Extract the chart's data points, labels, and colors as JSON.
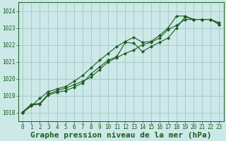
{
  "title": "Graphe pression niveau de la mer (hPa)",
  "bg_color": "#cce8e8",
  "grid_color": "#aacccc",
  "line_color": "#1a5c1a",
  "xlim": [
    -0.5,
    23.5
  ],
  "ylim": [
    1017.5,
    1024.5
  ],
  "yticks": [
    1018,
    1019,
    1020,
    1021,
    1022,
    1023,
    1024
  ],
  "xticks": [
    0,
    1,
    2,
    3,
    4,
    5,
    6,
    7,
    8,
    9,
    10,
    11,
    12,
    13,
    14,
    15,
    16,
    17,
    18,
    19,
    20,
    21,
    22,
    23
  ],
  "series": [
    {
      "x": [
        0,
        1,
        2,
        3,
        4,
        5,
        6,
        7,
        8,
        9,
        10,
        11,
        12,
        13,
        14,
        15,
        16,
        17,
        18,
        19,
        20,
        21,
        22,
        23
      ],
      "y": [
        1018.05,
        1018.5,
        1018.55,
        1019.1,
        1019.3,
        1019.45,
        1019.65,
        1019.85,
        1020.1,
        1020.55,
        1021.0,
        1021.25,
        1021.5,
        1021.7,
        1022.0,
        1022.15,
        1022.4,
        1022.9,
        1023.15,
        1023.5,
        1023.5,
        1023.5,
        1023.5,
        1023.2
      ],
      "marker": true
    },
    {
      "x": [
        0,
        1,
        2,
        3,
        4,
        5,
        6,
        7,
        8,
        9,
        10,
        11,
        12,
        13,
        14,
        15,
        16,
        17,
        18,
        19,
        20,
        21,
        22,
        23
      ],
      "y": [
        1018.0,
        1018.45,
        1018.5,
        1019.05,
        1019.2,
        1019.3,
        1019.5,
        1019.75,
        1020.3,
        1020.7,
        1021.1,
        1021.3,
        1022.15,
        1022.1,
        1021.6,
        1021.9,
        1022.15,
        1022.4,
        1023.0,
        1023.65,
        1023.5,
        1023.5,
        1023.5,
        1023.2
      ],
      "marker": true
    },
    {
      "x": [
        0,
        1,
        2,
        3,
        4,
        5,
        6,
        7,
        8,
        9,
        10,
        11,
        12,
        13,
        14,
        15,
        16,
        17,
        18,
        19,
        20,
        21,
        22,
        23
      ],
      "y": [
        1018.0,
        1018.4,
        1018.85,
        1019.25,
        1019.4,
        1019.55,
        1019.85,
        1020.2,
        1020.65,
        1021.1,
        1021.5,
        1021.9,
        1022.2,
        1022.45,
        1022.15,
        1022.2,
        1022.55,
        1023.0,
        1023.7,
        1023.7,
        1023.5,
        1023.5,
        1023.5,
        1023.3
      ],
      "marker": true
    }
  ],
  "font_family": "monospace",
  "title_fontsize": 8.0,
  "tick_fontsize": 5.5,
  "linewidth": 0.8,
  "markersize": 2.2
}
